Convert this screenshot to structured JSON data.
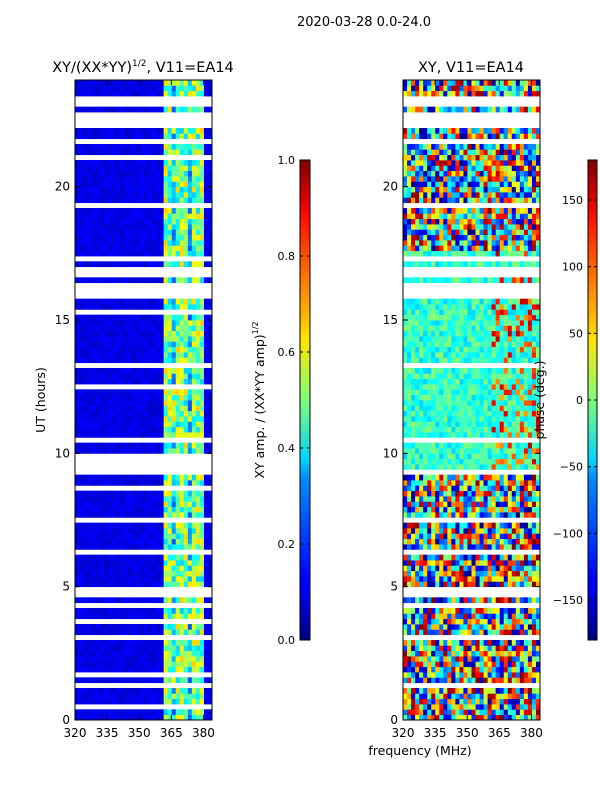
{
  "figure": {
    "suptitle": "2020-03-28 0.0-24.0",
    "shared_xlabel": "frequency (MHz)"
  },
  "chart_data": [
    {
      "type": "heatmap",
      "title_main": "XY/(XX*YY)",
      "title_sup": "1/2",
      "title_tail": ", V11=EA14",
      "ylabel": "UT (hours)",
      "xlabel": "frequency (MHz)",
      "xlim": [
        320,
        384
      ],
      "ylim": [
        0,
        24
      ],
      "xticks": [
        "320",
        "335",
        "350",
        "365",
        "380"
      ],
      "xtick_values": [
        320,
        335,
        350,
        365,
        380
      ],
      "yticks": [
        "0",
        "5",
        "10",
        "15",
        "20"
      ],
      "ytick_values": [
        0,
        5,
        10,
        15,
        20
      ],
      "colorbar": {
        "label_main": "XY amp. / (XX*YY amp)",
        "label_sup": "1/2",
        "range": [
          0.0,
          1.0
        ],
        "ticks": [
          "0.0",
          "0.2",
          "0.4",
          "0.6",
          "0.8",
          "1.0"
        ],
        "tick_values": [
          0.0,
          0.2,
          0.4,
          0.6,
          0.8,
          1.0
        ],
        "colormap": "jet"
      },
      "features": {
        "background_value": 0.1,
        "active_band_mhz": [
          361,
          381
        ],
        "active_band_value": 0.5,
        "blank_ut_bands": [
          [
            23.1,
            23.3
          ],
          [
            22.3,
            22.7
          ],
          [
            21.6,
            21.8
          ],
          [
            21.0,
            21.1
          ],
          [
            19.2,
            19.4
          ],
          [
            17.2,
            17.4
          ],
          [
            16.6,
            17.0
          ],
          [
            15.8,
            16.4
          ],
          [
            15.2,
            15.4
          ],
          [
            13.1,
            13.3
          ],
          [
            12.4,
            12.5
          ],
          [
            10.3,
            10.5
          ],
          [
            9.2,
            9.9
          ],
          [
            8.7,
            8.8
          ],
          [
            7.3,
            7.5
          ],
          [
            6.2,
            6.4
          ],
          [
            4.6,
            4.9
          ],
          [
            4.2,
            4.4
          ],
          [
            3.6,
            3.7
          ],
          [
            3.1,
            3.2
          ],
          [
            2.1,
            2.3
          ],
          [
            1.6,
            1.7
          ],
          [
            1.1,
            1.3
          ],
          [
            0.5,
            0.6
          ]
        ]
      }
    },
    {
      "type": "heatmap",
      "title": "XY, V11=EA14",
      "ylabel": "",
      "xlabel": "frequency (MHz)",
      "xlim": [
        320,
        384
      ],
      "ylim": [
        0,
        24
      ],
      "xticks": [
        "320",
        "335",
        "350",
        "365",
        "380"
      ],
      "xtick_values": [
        320,
        335,
        350,
        365,
        380
      ],
      "yticks": [
        "0",
        "5",
        "10",
        "15",
        "20"
      ],
      "ytick_values": [
        0,
        5,
        10,
        15,
        20
      ],
      "colorbar": {
        "label": "phase (deg.)",
        "range": [
          -180,
          180
        ],
        "ticks": [
          "−150",
          "−100",
          "−50",
          "0",
          "50",
          "100",
          "150"
        ],
        "tick_values": [
          -150,
          -100,
          -50,
          0,
          50,
          100,
          150
        ],
        "colormap": "jet"
      },
      "features": {
        "quiet_ut_range": [
          9.5,
          17.5
        ],
        "noisy_ut_ranges": [
          [
            0,
            9.5
          ],
          [
            17.5,
            24
          ]
        ],
        "blank_ut_bands": [
          [
            23.1,
            23.3
          ],
          [
            22.3,
            22.7
          ],
          [
            21.6,
            21.8
          ],
          [
            19.2,
            19.4
          ],
          [
            17.2,
            17.4
          ],
          [
            16.6,
            17.0
          ],
          [
            15.8,
            16.4
          ],
          [
            13.1,
            13.3
          ],
          [
            10.3,
            10.5
          ],
          [
            9.2,
            9.4
          ],
          [
            7.3,
            7.5
          ],
          [
            6.2,
            6.4
          ],
          [
            4.6,
            4.9
          ],
          [
            4.2,
            4.4
          ],
          [
            3.1,
            3.2
          ],
          [
            2.1,
            2.3
          ],
          [
            1.1,
            1.3
          ]
        ]
      }
    }
  ]
}
